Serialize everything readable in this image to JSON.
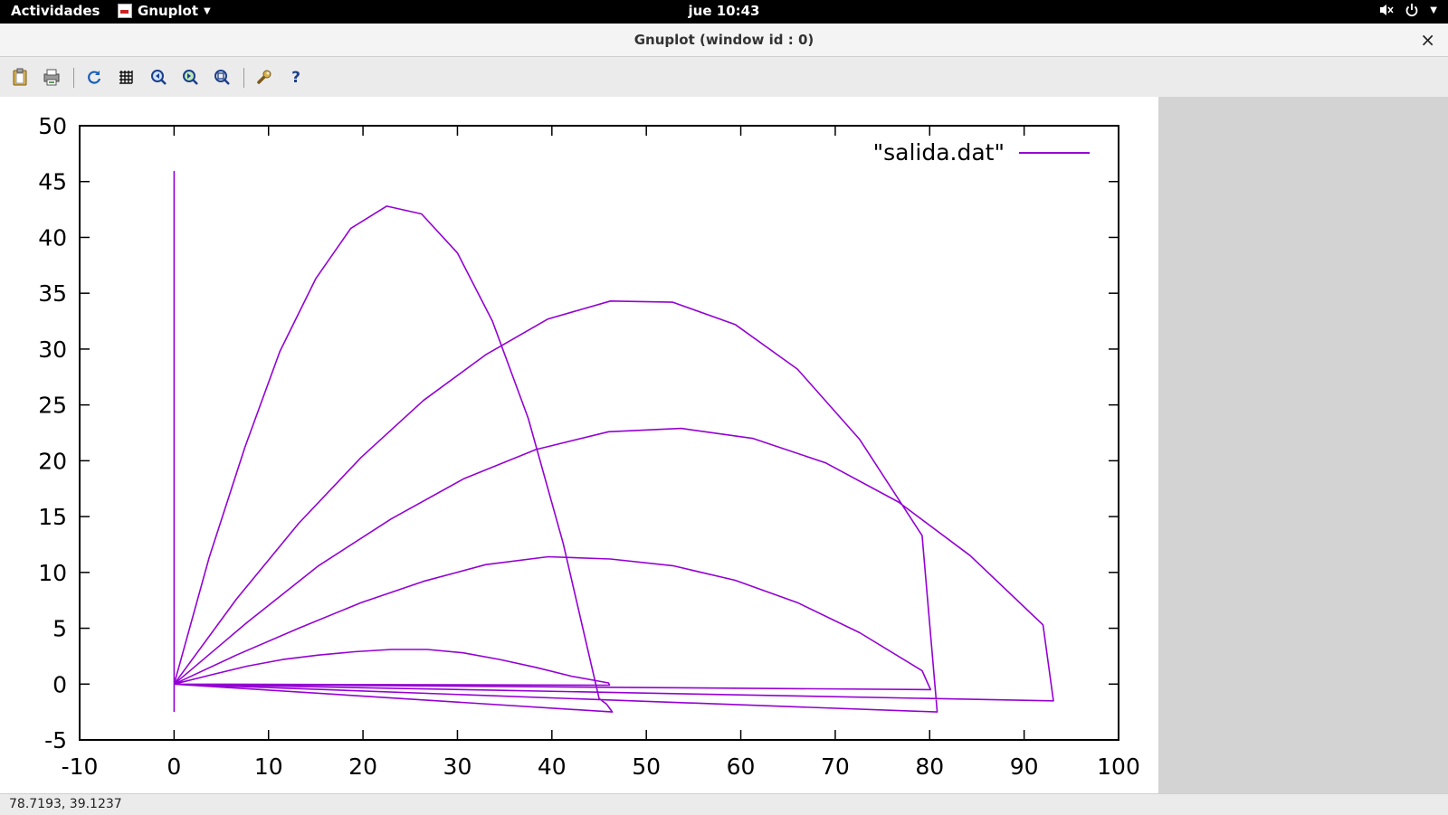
{
  "topbar": {
    "activities": "Actividades",
    "app_name": "Gnuplot",
    "clock": "jue 10:43",
    "tray_icons": [
      "volume-muted-icon",
      "power-icon",
      "chevron-down-icon"
    ]
  },
  "window": {
    "title": "Gnuplot (window id : 0)",
    "close_glyph": "×"
  },
  "toolbar": {
    "buttons": [
      {
        "name": "copy-to-clipboard-button",
        "icon": "clipboard-icon",
        "glyph": "📋"
      },
      {
        "name": "print-button",
        "icon": "printer-icon",
        "glyph": "🖶"
      },
      {
        "name": "replot-button",
        "icon": "refresh-icon",
        "glyph": "↻"
      },
      {
        "name": "toggle-grid-button",
        "icon": "grid-icon",
        "glyph": "#"
      },
      {
        "name": "previous-zoom-button",
        "icon": "zoom-previous-icon",
        "glyph": "◀"
      },
      {
        "name": "next-zoom-button",
        "icon": "zoom-next-icon",
        "glyph": "▶"
      },
      {
        "name": "autoscale-button",
        "icon": "zoom-autoscale-icon",
        "glyph": "⊡"
      },
      {
        "name": "config-button",
        "icon": "wrench-icon",
        "glyph": "🔧"
      },
      {
        "name": "help-button",
        "icon": "help-icon",
        "glyph": "?"
      }
    ]
  },
  "status": {
    "coords": "78.7193,  39.1237"
  },
  "colors": {
    "series": "#9400d3",
    "axes": "#000000",
    "background": "#ffffff",
    "side_panel": "#d3d3d3"
  },
  "chart_data": {
    "type": "line",
    "title": "",
    "xlabel": "",
    "ylabel": "",
    "xlim": [
      -10,
      100
    ],
    "ylim": [
      -5,
      50
    ],
    "xticks": [
      -10,
      0,
      10,
      20,
      30,
      40,
      50,
      60,
      70,
      80,
      90,
      100
    ],
    "yticks": [
      -5,
      0,
      5,
      10,
      15,
      20,
      25,
      30,
      35,
      40,
      45,
      50
    ],
    "grid": false,
    "legend_position": "top-right",
    "series": [
      {
        "name": "\"salida.dat\"",
        "x": [
          0,
          0,
          0,
          3.7,
          7.5,
          11.2,
          15,
          18.7,
          22.5,
          26.2,
          30,
          33.7,
          37.5,
          41.2,
          45,
          45.8,
          46.4,
          0,
          6.6,
          13.2,
          19.8,
          26.4,
          33,
          39.6,
          46.2,
          52.8,
          59.4,
          66,
          72.6,
          79.2,
          80.8,
          0,
          7.7,
          15.3,
          23,
          30.7,
          38.3,
          46,
          53.7,
          61.3,
          69,
          76.7,
          84.3,
          92,
          93.1,
          0,
          6.6,
          13.2,
          19.8,
          26.4,
          33,
          39.6,
          46.2,
          52.8,
          59.4,
          66,
          72.6,
          79.2,
          80.1,
          0,
          3.8,
          7.7,
          11.5,
          15.3,
          19.1,
          23,
          26.8,
          30.6,
          34.5,
          38.3,
          42.1,
          46,
          46.1,
          0,
          46.1
        ],
        "y": [
          -2.5,
          45.9,
          0,
          11.3,
          21.2,
          29.8,
          36.3,
          40.8,
          42.8,
          42.1,
          38.6,
          32.5,
          23.8,
          12.6,
          -1.3,
          -1.8,
          -2.5,
          0,
          7.6,
          14.4,
          20.3,
          25.4,
          29.5,
          32.7,
          34.3,
          34.2,
          32.2,
          28.2,
          21.9,
          13.3,
          -2.5,
          0,
          5.5,
          10.6,
          14.8,
          18.4,
          21,
          22.6,
          22.9,
          22,
          19.8,
          16.3,
          11.5,
          5.3,
          -1.5,
          0,
          2.6,
          5,
          7.3,
          9.2,
          10.7,
          11.4,
          11.2,
          10.6,
          9.3,
          7.3,
          4.6,
          1.2,
          -0.5,
          0,
          0.8,
          1.6,
          2.2,
          2.6,
          2.9,
          3.1,
          3.1,
          2.8,
          2.2,
          1.5,
          0.7,
          0.1,
          -0.1,
          0,
          -0.1
        ]
      }
    ]
  }
}
